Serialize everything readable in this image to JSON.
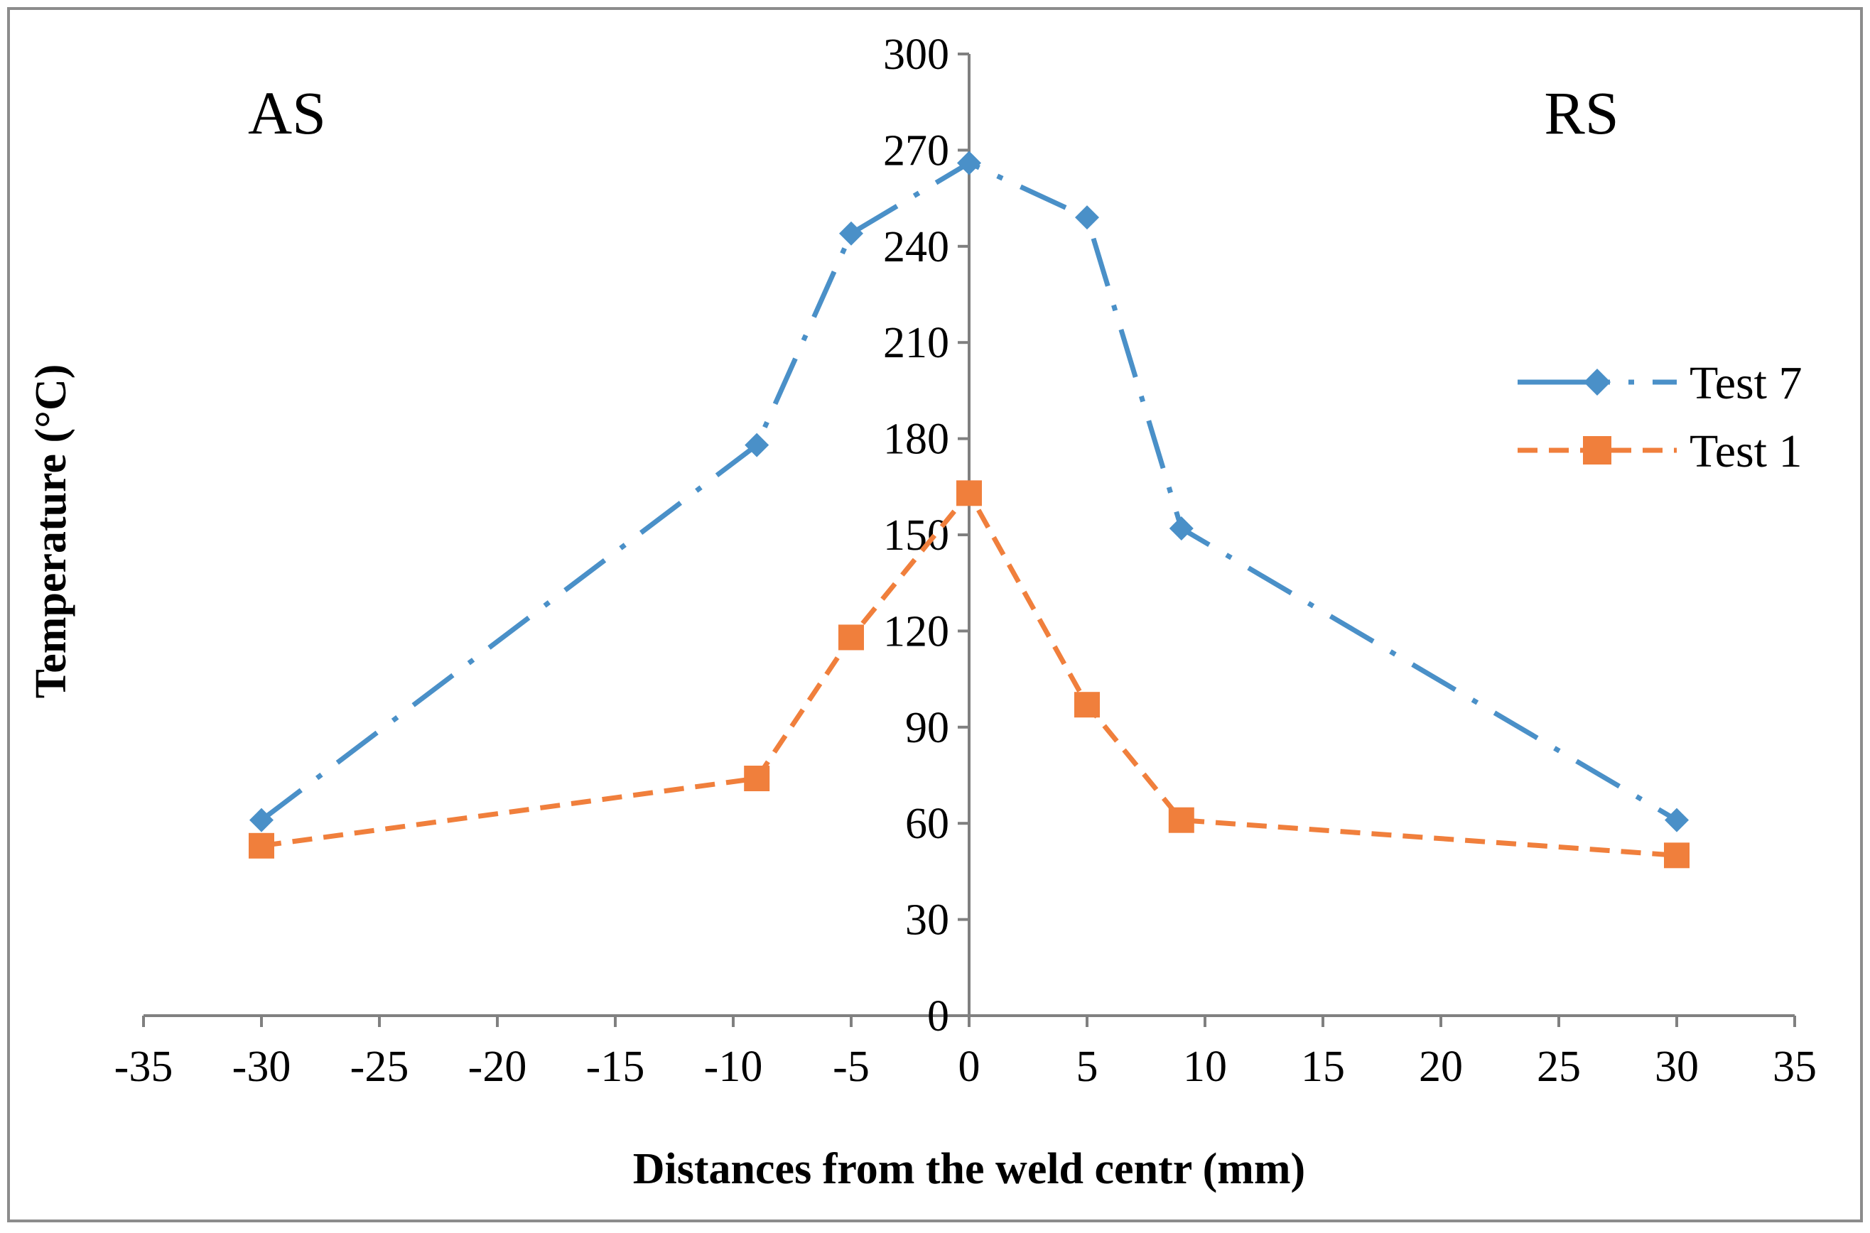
{
  "chart_data": {
    "type": "line",
    "title": "",
    "xlabel": "Distances from the weld centr (mm)",
    "ylabel": "Temperature (°C)",
    "xlim": [
      -35,
      35
    ],
    "ylim": [
      0,
      300
    ],
    "xticks": [
      -35,
      -30,
      -25,
      -20,
      -15,
      -10,
      -5,
      0,
      5,
      10,
      15,
      20,
      25,
      30,
      35
    ],
    "yticks": [
      0,
      30,
      60,
      90,
      120,
      150,
      180,
      210,
      240,
      270,
      300
    ],
    "annotations": {
      "left": "AS",
      "right": "RS"
    },
    "legend_position": "right",
    "series": [
      {
        "name": "Test 7",
        "color": "#4a90c8",
        "marker": "diamond",
        "dash": "long-dash-dot",
        "x": [
          -30,
          -9,
          -5,
          0,
          5,
          9,
          30
        ],
        "y": [
          61,
          178,
          244,
          266,
          249,
          152,
          61
        ]
      },
      {
        "name": "Test 1",
        "color": "#f07f3c",
        "marker": "square",
        "dash": "dash",
        "x": [
          -30,
          -9,
          -5,
          0,
          5,
          9,
          30
        ],
        "y": [
          53,
          74,
          118,
          163,
          97,
          61,
          50
        ]
      }
    ]
  }
}
